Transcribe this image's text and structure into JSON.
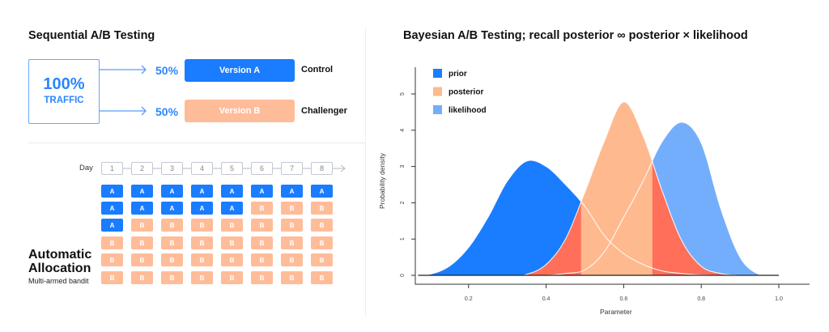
{
  "left": {
    "title": "Sequential A/B Testing",
    "traffic": {
      "value": "100%",
      "label": "TRAFFIC"
    },
    "splits": [
      {
        "percent": "50%",
        "version": "Version A",
        "role": "Control",
        "color": "#1a7cff"
      },
      {
        "percent": "50%",
        "version": "Version B",
        "role": "Challenger",
        "color": "#ffbc99"
      }
    ],
    "bandit": {
      "day_label": "Day",
      "days": [
        "1",
        "2",
        "3",
        "4",
        "5",
        "6",
        "7",
        "8"
      ],
      "rows": [
        [
          "A",
          "A",
          "A",
          "A",
          "A",
          "A",
          "A",
          "A"
        ],
        [
          "A",
          "A",
          "A",
          "A",
          "A",
          "B",
          "B",
          "B"
        ],
        [
          "A",
          "B",
          "B",
          "B",
          "B",
          "B",
          "B",
          "B"
        ],
        [
          "B",
          "B",
          "B",
          "B",
          "B",
          "B",
          "B",
          "B"
        ],
        [
          "B",
          "B",
          "B",
          "B",
          "B",
          "B",
          "B",
          "B"
        ],
        [
          "B",
          "B",
          "B",
          "B",
          "B",
          "B",
          "B",
          "B"
        ]
      ],
      "title_line1": "Automatic",
      "title_line2": "Allocation",
      "subtitle": "Multi-armed bandit"
    }
  },
  "chart_data": {
    "type": "area",
    "title": "Bayesian A/B Testing; recall posterior ∞ posterior × likelihood",
    "xlabel": "Parameter",
    "ylabel": "Probability density",
    "xlim": [
      0.05,
      1.0
    ],
    "ylim": [
      0,
      5.3
    ],
    "xticks": [
      "0.2",
      "0.4",
      "0.6",
      "0.8",
      "1.0"
    ],
    "yticks": [
      "0",
      "1",
      "2",
      "3",
      "4",
      "5"
    ],
    "legend_position": "top-left",
    "overlap_color": "#ff6f5a",
    "series": [
      {
        "name": "prior",
        "color": "#1a7cff",
        "x": [
          0.07,
          0.1,
          0.15,
          0.2,
          0.25,
          0.3,
          0.35,
          0.4,
          0.45,
          0.5,
          0.55,
          0.6,
          0.65,
          0.7,
          0.75,
          0.8,
          0.85
        ],
        "y": [
          0,
          0.03,
          0.25,
          0.77,
          1.6,
          2.6,
          3.15,
          3.0,
          2.5,
          1.9,
          1.1,
          0.6,
          0.3,
          0.12,
          0.05,
          0.01,
          0
        ]
      },
      {
        "name": "posterior",
        "color": "#ffb98f",
        "x": [
          0.33,
          0.35,
          0.4,
          0.45,
          0.5,
          0.55,
          0.6,
          0.65,
          0.7,
          0.75,
          0.8,
          0.85,
          0.9
        ],
        "y": [
          0,
          0.03,
          0.3,
          1.0,
          2.3,
          3.7,
          4.78,
          3.85,
          2.3,
          0.95,
          0.25,
          0.05,
          0
        ]
      },
      {
        "name": "likelihood",
        "color": "#73aefc",
        "x": [
          0.4,
          0.45,
          0.5,
          0.55,
          0.6,
          0.65,
          0.7,
          0.75,
          0.8,
          0.85,
          0.9,
          0.95
        ],
        "y": [
          0,
          0.05,
          0.15,
          0.65,
          1.6,
          2.6,
          3.7,
          4.22,
          3.65,
          1.85,
          0.5,
          0.02
        ]
      }
    ]
  }
}
